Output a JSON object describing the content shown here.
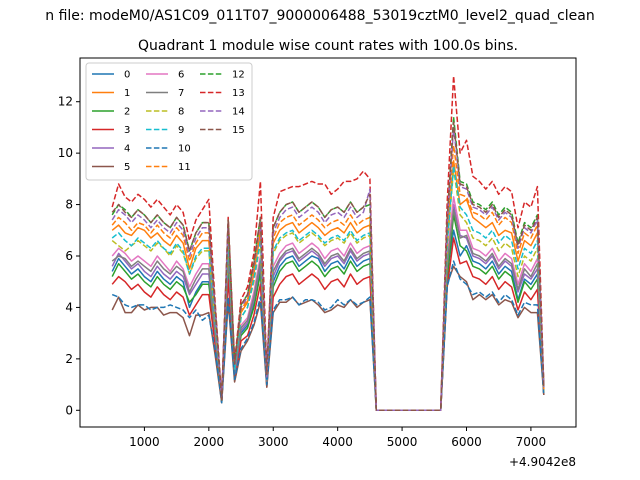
{
  "chart_data": {
    "type": "line",
    "suptitle": "n file: modeM0/AS1C09_011T07_9000006488_53019cztM0_level2_quad_clean",
    "title": "Quadrant 1 module wise count rates with 100.0s bins.",
    "xlabel": "",
    "ylabel": "",
    "x_offset_label": "+4.9042e8",
    "xlim": [
      0,
      7700
    ],
    "ylim": [
      -0.65,
      13.7
    ],
    "x_ticks": [
      1000,
      2000,
      3000,
      4000,
      5000,
      6000,
      7000
    ],
    "y_ticks": [
      0,
      2,
      4,
      6,
      8,
      10,
      12
    ],
    "x_tick_labels": [
      "1000",
      "2000",
      "3000",
      "4000",
      "5000",
      "6000",
      "7000"
    ],
    "y_tick_labels": [
      "0",
      "2",
      "4",
      "6",
      "8",
      "10",
      "12"
    ],
    "grid": false,
    "legend_position": "top-left",
    "x": [
      500,
      600,
      700,
      800,
      900,
      1000,
      1100,
      1200,
      1300,
      1400,
      1500,
      1600,
      1700,
      1800,
      1900,
      2000,
      2100,
      2200,
      2300,
      2400,
      2500,
      2600,
      2700,
      2800,
      2900,
      3000,
      3100,
      3200,
      3300,
      3400,
      3500,
      3600,
      3700,
      3800,
      3900,
      4000,
      4100,
      4200,
      4300,
      4400,
      4500,
      4600,
      4700,
      4800,
      4900,
      5000,
      5100,
      5200,
      5300,
      5400,
      5500,
      5600,
      5700,
      5800,
      5900,
      6000,
      6100,
      6200,
      6300,
      6400,
      6500,
      6600,
      6700,
      6800,
      6900,
      7000,
      7100,
      7200
    ],
    "series": [
      {
        "name": "0",
        "color": "#1f77b4",
        "dash": "solid",
        "values": [
          5.4,
          5.9,
          5.6,
          5.3,
          5.5,
          5.2,
          5.0,
          5.4,
          5.1,
          4.9,
          5.2,
          5.0,
          4.0,
          4.6,
          5.0,
          5.0,
          2.8,
          0.3,
          5.8,
          1.4,
          3.0,
          3.3,
          4.2,
          5.5,
          1.0,
          5.0,
          5.6,
          5.9,
          6.0,
          5.6,
          5.8,
          6.0,
          5.9,
          5.4,
          5.7,
          5.8,
          5.5,
          6.0,
          5.6,
          5.8,
          5.9,
          0.0,
          0.0,
          0.0,
          0.0,
          0.0,
          0.0,
          0.0,
          0.0,
          0.0,
          0.0,
          0.0,
          5.3,
          7.0,
          6.0,
          6.4,
          5.8,
          5.7,
          5.5,
          5.8,
          5.3,
          5.6,
          5.4,
          4.3,
          5.1,
          4.9,
          5.3,
          0.6
        ]
      },
      {
        "name": "1",
        "color": "#ff7f0e",
        "dash": "solid",
        "values": [
          7.0,
          7.2,
          6.9,
          6.8,
          7.1,
          7.0,
          6.7,
          6.9,
          6.6,
          6.4,
          6.8,
          6.5,
          5.5,
          6.3,
          6.6,
          6.6,
          3.6,
          0.4,
          7.0,
          1.7,
          3.8,
          4.2,
          5.3,
          6.9,
          1.3,
          6.5,
          7.0,
          7.2,
          7.3,
          6.9,
          7.1,
          7.3,
          7.1,
          6.8,
          7.0,
          7.1,
          6.9,
          7.3,
          6.9,
          7.1,
          7.2,
          0.0,
          0.0,
          0.0,
          0.0,
          0.0,
          0.0,
          0.0,
          0.0,
          0.0,
          0.0,
          0.0,
          6.8,
          9.7,
          8.0,
          8.2,
          7.5,
          7.3,
          7.1,
          7.3,
          6.8,
          7.0,
          6.9,
          5.8,
          6.6,
          6.4,
          6.9,
          0.8
        ]
      },
      {
        "name": "2",
        "color": "#2ca02c",
        "dash": "solid",
        "values": [
          5.2,
          5.7,
          5.4,
          5.1,
          5.3,
          5.0,
          4.8,
          5.2,
          4.9,
          4.7,
          5.0,
          4.8,
          4.2,
          4.5,
          4.9,
          4.9,
          2.7,
          0.3,
          5.6,
          1.3,
          2.9,
          3.2,
          4.0,
          5.3,
          1.0,
          4.8,
          5.4,
          5.7,
          5.8,
          5.4,
          5.6,
          5.8,
          5.6,
          5.2,
          5.5,
          5.6,
          5.3,
          5.8,
          5.4,
          5.6,
          5.7,
          0.0,
          0.0,
          0.0,
          0.0,
          0.0,
          0.0,
          0.0,
          0.0,
          0.0,
          0.0,
          0.0,
          5.1,
          7.6,
          6.4,
          6.2,
          5.6,
          5.5,
          5.3,
          5.6,
          5.1,
          5.4,
          5.2,
          4.2,
          5.0,
          4.7,
          5.1,
          0.6
        ]
      },
      {
        "name": "3",
        "color": "#d62728",
        "dash": "solid",
        "values": [
          4.9,
          5.2,
          5.0,
          4.7,
          4.9,
          4.6,
          4.4,
          4.8,
          4.5,
          4.3,
          4.6,
          4.4,
          3.7,
          4.1,
          4.5,
          4.5,
          2.5,
          0.3,
          5.1,
          1.2,
          2.7,
          2.9,
          3.7,
          4.9,
          0.9,
          4.4,
          4.9,
          5.2,
          5.3,
          4.9,
          5.1,
          5.3,
          5.1,
          4.7,
          5.0,
          5.1,
          4.8,
          5.3,
          4.9,
          5.1,
          5.2,
          0.0,
          0.0,
          0.0,
          0.0,
          0.0,
          0.0,
          0.0,
          0.0,
          0.0,
          0.0,
          0.0,
          4.8,
          6.7,
          5.7,
          5.8,
          5.2,
          5.1,
          4.9,
          5.2,
          4.7,
          5.0,
          4.8,
          3.9,
          4.6,
          4.3,
          4.7,
          0.6
        ]
      },
      {
        "name": "4",
        "color": "#9467bd",
        "dash": "solid",
        "values": [
          5.6,
          6.1,
          5.8,
          5.5,
          5.7,
          5.4,
          5.2,
          5.6,
          5.3,
          5.1,
          5.4,
          5.2,
          4.5,
          4.9,
          5.3,
          5.3,
          2.9,
          0.3,
          6.0,
          1.4,
          3.1,
          3.4,
          4.3,
          5.7,
          1.1,
          5.2,
          5.8,
          6.1,
          6.2,
          5.8,
          6.0,
          6.2,
          6.0,
          5.6,
          5.9,
          6.0,
          5.7,
          6.2,
          5.8,
          6.0,
          6.1,
          0.0,
          0.0,
          0.0,
          0.0,
          0.0,
          0.0,
          0.0,
          0.0,
          0.0,
          0.0,
          0.0,
          5.6,
          8.0,
          6.8,
          6.7,
          6.0,
          5.9,
          5.7,
          6.0,
          5.5,
          5.8,
          5.6,
          4.6,
          5.3,
          5.1,
          5.5,
          0.7
        ]
      },
      {
        "name": "5",
        "color": "#8c564b",
        "dash": "solid",
        "values": [
          3.9,
          4.4,
          3.8,
          3.8,
          4.1,
          3.9,
          4.0,
          4.0,
          3.7,
          3.8,
          3.8,
          3.6,
          2.9,
          3.7,
          3.7,
          3.8,
          2.1,
          0.3,
          4.2,
          1.1,
          2.3,
          2.7,
          3.3,
          4.2,
          0.9,
          3.8,
          4.2,
          4.2,
          4.4,
          4.1,
          4.2,
          4.3,
          4.1,
          3.8,
          3.9,
          4.1,
          4.0,
          4.3,
          4.0,
          4.2,
          4.3,
          0.0,
          0.0,
          0.0,
          0.0,
          0.0,
          0.0,
          0.0,
          0.0,
          0.0,
          0.0,
          0.0,
          4.9,
          5.6,
          5.2,
          5.0,
          4.3,
          4.5,
          4.3,
          4.5,
          4.1,
          4.3,
          4.2,
          3.6,
          4.0,
          3.8,
          3.8,
          0.6
        ]
      },
      {
        "name": "6",
        "color": "#e377c2",
        "dash": "solid",
        "values": [
          6.0,
          6.3,
          6.1,
          5.8,
          6.0,
          5.8,
          5.6,
          6.0,
          5.7,
          5.4,
          5.8,
          5.5,
          4.8,
          5.3,
          5.7,
          5.7,
          3.1,
          0.4,
          6.3,
          1.5,
          3.3,
          3.6,
          4.6,
          6.0,
          1.1,
          5.6,
          6.1,
          6.4,
          6.5,
          6.1,
          6.3,
          6.5,
          6.3,
          5.9,
          6.2,
          6.3,
          6.0,
          6.5,
          6.1,
          6.3,
          6.4,
          0.0,
          0.0,
          0.0,
          0.0,
          0.0,
          0.0,
          0.0,
          0.0,
          0.0,
          0.0,
          0.0,
          5.9,
          8.3,
          7.0,
          7.0,
          6.3,
          6.2,
          6.0,
          6.3,
          5.8,
          6.1,
          5.9,
          4.9,
          5.7,
          5.4,
          5.9,
          0.7
        ]
      },
      {
        "name": "7",
        "color": "#7f7f7f",
        "dash": "solid",
        "values": [
          5.8,
          6.0,
          5.9,
          5.6,
          5.8,
          5.6,
          5.4,
          5.8,
          5.5,
          5.3,
          5.6,
          5.4,
          4.6,
          5.1,
          5.5,
          5.5,
          3.0,
          0.3,
          6.1,
          1.5,
          3.2,
          3.5,
          4.4,
          5.8,
          1.1,
          5.4,
          5.9,
          6.2,
          6.3,
          5.9,
          6.1,
          6.3,
          6.1,
          5.7,
          6.0,
          6.1,
          5.8,
          6.3,
          5.9,
          6.1,
          6.2,
          0.0,
          0.0,
          0.0,
          0.0,
          0.0,
          0.0,
          0.0,
          0.0,
          0.0,
          0.0,
          0.0,
          5.7,
          7.8,
          6.7,
          6.8,
          6.1,
          6.0,
          5.8,
          6.1,
          5.6,
          5.9,
          5.7,
          4.7,
          5.5,
          5.2,
          5.7,
          0.7
        ]
      },
      {
        "name": "8",
        "color": "#bcbd22",
        "dash": "dashed",
        "values": [
          6.6,
          6.4,
          6.2,
          6.4,
          6.6,
          6.4,
          6.2,
          6.5,
          6.3,
          6.0,
          6.4,
          6.1,
          5.3,
          5.9,
          6.2,
          6.2,
          3.4,
          0.4,
          6.6,
          1.6,
          3.6,
          4.0,
          5.0,
          6.5,
          1.2,
          6.1,
          6.6,
          6.8,
          6.9,
          6.5,
          6.7,
          6.9,
          6.7,
          6.4,
          6.6,
          6.7,
          6.5,
          6.9,
          6.5,
          6.7,
          6.8,
          0.0,
          0.0,
          0.0,
          0.0,
          0.0,
          0.0,
          0.0,
          0.0,
          0.0,
          0.0,
          0.0,
          6.3,
          9.4,
          7.6,
          7.3,
          6.7,
          6.6,
          6.4,
          6.7,
          6.2,
          6.5,
          6.3,
          5.2,
          6.0,
          5.8,
          6.3,
          0.7
        ]
      },
      {
        "name": "9",
        "color": "#17becf",
        "dash": "dashed",
        "values": [
          6.7,
          6.9,
          6.6,
          6.4,
          6.7,
          6.5,
          6.3,
          6.6,
          6.3,
          6.1,
          6.5,
          6.2,
          5.3,
          6.0,
          6.3,
          6.3,
          3.4,
          0.4,
          6.7,
          1.6,
          3.6,
          4.0,
          5.1,
          6.6,
          1.2,
          6.2,
          6.7,
          6.9,
          7.0,
          6.6,
          6.8,
          7.0,
          6.8,
          6.5,
          6.7,
          6.8,
          6.6,
          7.0,
          6.6,
          6.8,
          6.9,
          0.0,
          0.0,
          0.0,
          0.0,
          0.0,
          0.0,
          0.0,
          0.0,
          0.0,
          0.0,
          0.0,
          6.5,
          9.5,
          7.9,
          7.6,
          7.0,
          6.9,
          6.7,
          7.0,
          6.5,
          6.8,
          6.6,
          5.5,
          6.3,
          6.1,
          6.6,
          0.8
        ]
      },
      {
        "name": "10",
        "color": "#1f77b4",
        "dash": "dashed",
        "values": [
          4.5,
          4.4,
          4.1,
          4.0,
          4.1,
          4.1,
          3.9,
          4.0,
          4.0,
          4.1,
          4.0,
          3.9,
          3.6,
          3.9,
          3.5,
          3.7,
          2.3,
          0.3,
          4.4,
          1.2,
          2.4,
          2.8,
          3.4,
          4.4,
          1.0,
          3.9,
          4.3,
          4.3,
          4.4,
          4.1,
          4.3,
          4.3,
          4.2,
          3.9,
          4.0,
          4.3,
          4.1,
          4.3,
          4.1,
          4.2,
          4.4,
          0.0,
          0.0,
          0.0,
          0.0,
          0.0,
          0.0,
          0.0,
          0.0,
          0.0,
          0.0,
          0.0,
          4.8,
          5.8,
          5.1,
          4.9,
          4.5,
          4.6,
          4.4,
          4.6,
          4.2,
          4.5,
          4.3,
          3.7,
          4.2,
          4.1,
          4.1,
          0.6
        ]
      },
      {
        "name": "11",
        "color": "#ff7f0e",
        "dash": "dashed",
        "values": [
          7.2,
          7.5,
          7.3,
          7.0,
          7.3,
          7.2,
          6.9,
          7.2,
          6.9,
          6.7,
          7.1,
          6.8,
          5.8,
          6.5,
          6.9,
          6.9,
          3.7,
          0.4,
          7.2,
          1.8,
          3.9,
          4.3,
          5.5,
          7.1,
          1.3,
          6.7,
          7.3,
          7.5,
          7.6,
          7.2,
          7.4,
          7.6,
          7.4,
          7.1,
          7.3,
          7.4,
          7.2,
          7.6,
          7.2,
          7.4,
          7.5,
          0.0,
          0.0,
          0.0,
          0.0,
          0.0,
          0.0,
          0.0,
          0.0,
          0.0,
          0.0,
          0.0,
          7.1,
          10.3,
          8.4,
          8.3,
          7.7,
          7.6,
          7.4,
          7.7,
          7.2,
          7.5,
          7.3,
          6.1,
          6.9,
          6.7,
          7.2,
          0.8
        ]
      },
      {
        "name": "12",
        "color": "#2ca02c",
        "dash": "dashed",
        "values": [
          7.6,
          8.0,
          7.8,
          7.5,
          7.8,
          7.6,
          7.3,
          7.6,
          7.3,
          7.1,
          7.5,
          7.2,
          6.2,
          6.9,
          7.3,
          7.3,
          3.9,
          0.4,
          7.4,
          1.8,
          4.1,
          4.5,
          5.8,
          7.5,
          1.4,
          7.1,
          7.7,
          8.0,
          8.1,
          7.7,
          7.9,
          8.1,
          7.9,
          7.5,
          7.8,
          7.9,
          7.7,
          8.1,
          7.7,
          7.9,
          8.0,
          0.0,
          0.0,
          0.0,
          0.0,
          0.0,
          0.0,
          0.0,
          0.0,
          0.0,
          0.0,
          0.0,
          7.5,
          11.4,
          8.9,
          8.8,
          8.1,
          8.0,
          7.8,
          8.1,
          7.6,
          7.9,
          7.7,
          6.5,
          7.3,
          7.1,
          7.6,
          0.9
        ]
      },
      {
        "name": "13",
        "color": "#d62728",
        "dash": "dashed",
        "values": [
          7.9,
          8.8,
          8.3,
          8.1,
          8.4,
          8.2,
          7.9,
          8.2,
          7.9,
          7.6,
          8.0,
          7.7,
          6.6,
          7.4,
          7.8,
          8.2,
          4.1,
          0.5,
          7.5,
          1.9,
          4.3,
          4.8,
          6.1,
          8.9,
          1.5,
          7.5,
          8.5,
          8.6,
          8.7,
          8.7,
          8.8,
          8.9,
          8.8,
          8.8,
          8.4,
          8.6,
          8.9,
          8.9,
          9.0,
          9.3,
          9.0,
          0.0,
          0.0,
          0.0,
          0.0,
          0.0,
          0.0,
          0.0,
          0.0,
          0.0,
          0.0,
          0.0,
          8.1,
          13.0,
          10.0,
          10.5,
          9.1,
          8.9,
          8.6,
          8.9,
          8.4,
          8.7,
          8.5,
          7.1,
          8.1,
          7.9,
          8.7,
          1.0
        ]
      },
      {
        "name": "14",
        "color": "#9467bd",
        "dash": "dashed",
        "values": [
          7.4,
          7.8,
          7.6,
          7.3,
          7.6,
          7.4,
          7.1,
          7.4,
          7.1,
          6.9,
          7.3,
          7.0,
          6.0,
          6.7,
          7.1,
          7.1,
          3.8,
          0.4,
          7.3,
          1.8,
          4.0,
          4.4,
          5.6,
          7.3,
          1.3,
          6.9,
          7.5,
          7.8,
          7.9,
          7.5,
          7.7,
          7.9,
          7.7,
          7.3,
          7.6,
          7.7,
          7.5,
          7.9,
          7.5,
          7.7,
          8.6,
          0.0,
          0.0,
          0.0,
          0.0,
          0.0,
          0.0,
          0.0,
          0.0,
          0.0,
          0.0,
          0.0,
          7.3,
          11.0,
          8.7,
          8.6,
          7.9,
          7.8,
          7.6,
          7.9,
          7.4,
          7.7,
          7.5,
          6.3,
          7.1,
          6.9,
          7.4,
          0.9
        ]
      },
      {
        "name": "15",
        "color": "#8c564b",
        "dash": "dashed",
        "values": [
          7.7,
          8.0,
          7.7,
          7.5,
          7.8,
          7.6,
          7.3,
          7.6,
          7.3,
          7.1,
          7.5,
          7.2,
          6.2,
          6.9,
          7.3,
          7.3,
          3.9,
          0.4,
          7.4,
          1.8,
          4.1,
          4.5,
          5.7,
          7.5,
          1.4,
          7.1,
          7.7,
          8.0,
          8.1,
          7.7,
          7.9,
          8.1,
          7.9,
          7.5,
          7.8,
          7.9,
          7.7,
          8.1,
          7.7,
          7.9,
          8.4,
          0.0,
          0.0,
          0.0,
          0.0,
          0.0,
          0.0,
          0.0,
          0.0,
          0.0,
          0.0,
          0.0,
          7.4,
          11.2,
          8.8,
          8.7,
          8.0,
          7.9,
          7.7,
          8.0,
          7.5,
          7.8,
          7.6,
          6.4,
          7.2,
          7.0,
          7.5,
          0.9
        ]
      }
    ]
  }
}
